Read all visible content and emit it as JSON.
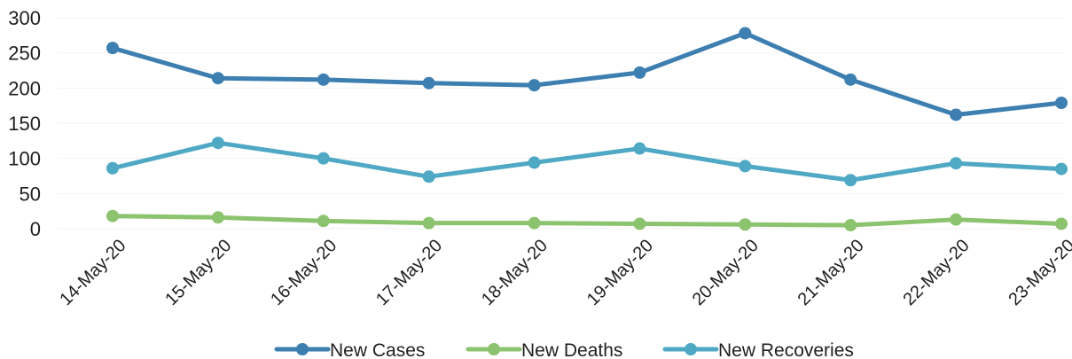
{
  "chart_data": {
    "type": "line",
    "title": "",
    "xlabel": "",
    "ylabel": "",
    "ylim": [
      0,
      300
    ],
    "yticks": [
      0,
      50,
      100,
      150,
      200,
      250,
      300
    ],
    "grid": true,
    "legend_position": "bottom",
    "categories": [
      "14-May-20",
      "15-May-20",
      "16-May-20",
      "17-May-20",
      "18-May-20",
      "19-May-20",
      "20-May-20",
      "21-May-20",
      "22-May-20",
      "23-May-20"
    ],
    "series": [
      {
        "name": "New Cases",
        "color": "#3d7fb0",
        "values": [
          257,
          214,
          212,
          207,
          204,
          222,
          278,
          212,
          162,
          179
        ]
      },
      {
        "name": "New Deaths",
        "color": "#8cc36e",
        "values": [
          18,
          16,
          11,
          8,
          8,
          7,
          6,
          5,
          13,
          7
        ]
      },
      {
        "name": "New Recoveries",
        "color": "#4fa8c4",
        "values": [
          86,
          122,
          100,
          74,
          94,
          114,
          89,
          69,
          93,
          85
        ]
      }
    ]
  }
}
